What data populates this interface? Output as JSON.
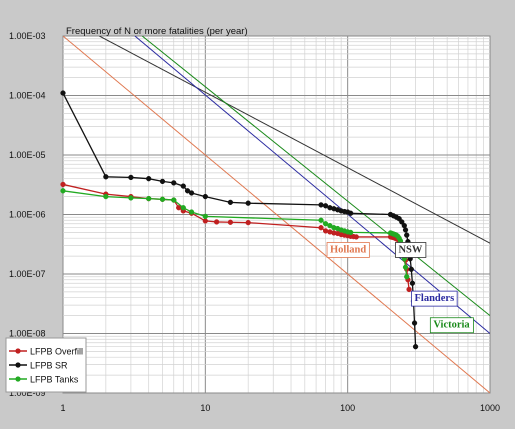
{
  "chart_data": {
    "type": "line",
    "title": "Frequency of N or more fatalities (per year)",
    "xlabel": "",
    "ylabel": "",
    "x_scale": "log",
    "y_scale": "log",
    "xlim": [
      1,
      1000
    ],
    "ylim": [
      1e-09,
      0.001
    ],
    "grid": true,
    "legend_position": "bottom-left",
    "x_ticks": [
      {
        "value": 1,
        "label": "1"
      },
      {
        "value": 10,
        "label": "10"
      },
      {
        "value": 100,
        "label": "100"
      },
      {
        "value": 1000,
        "label": "1000"
      }
    ],
    "y_ticks": [
      {
        "value": 0.001,
        "label": "1.00E-03"
      },
      {
        "value": 0.0001,
        "label": "1.00E-04"
      },
      {
        "value": 1e-05,
        "label": "1.00E-05"
      },
      {
        "value": 1e-06,
        "label": "1.00E-06"
      },
      {
        "value": 1e-07,
        "label": "1.00E-07"
      },
      {
        "value": 1e-08,
        "label": "1.00E-08"
      },
      {
        "value": 1e-09,
        "label": "1.00E-09"
      }
    ],
    "criteria": [
      {
        "name": "NSW",
        "color": "#333333",
        "points": [
          [
            1.8,
            0.001
          ],
          [
            1000,
            3.3e-07
          ]
        ],
        "label_at": [
          335,
          2.3e-07
        ]
      },
      {
        "name": "Victoria",
        "color": "#1a8a1a",
        "points": [
          [
            3.6,
            0.001
          ],
          [
            1000,
            2e-08
          ]
        ],
        "label_at": [
          720,
          1.25e-08
        ]
      },
      {
        "name": "Flanders",
        "color": "#2a2aa0",
        "points": [
          [
            3.2,
            0.001
          ],
          [
            1000,
            1e-08
          ]
        ],
        "label_at": [
          560,
          3.5e-08
        ]
      },
      {
        "name": "Holland",
        "color": "#e07850",
        "points": [
          [
            1.0,
            0.001
          ],
          [
            1000,
            1e-09
          ]
        ],
        "label_at": [
          135,
          2.3e-07
        ]
      }
    ],
    "series": [
      {
        "name": "LFPB Overfill",
        "color": "#c02020",
        "x": [
          1,
          2,
          3,
          4,
          5,
          6,
          6.5,
          7,
          8,
          10,
          12,
          15,
          20,
          65,
          70,
          75,
          80,
          85,
          90,
          95,
          100,
          105,
          110,
          115,
          200,
          205,
          210,
          215,
          220,
          225,
          230,
          235,
          240,
          245,
          250,
          255,
          260,
          265,
          270
        ],
        "y": [
          3.2e-06,
          2.2e-06,
          2e-06,
          1.85e-06,
          1.8e-06,
          1.75e-06,
          1.3e-06,
          1.15e-06,
          1.05e-06,
          7.8e-07,
          7.5e-07,
          7.4e-07,
          7.3e-07,
          6e-07,
          5.3e-07,
          5.1e-07,
          4.9e-07,
          4.8e-07,
          4.6e-07,
          4.5e-07,
          4.4e-07,
          4.3e-07,
          4.25e-07,
          4.2e-07,
          4.2e-07,
          4.15e-07,
          4.1e-07,
          4e-07,
          3.9e-07,
          3.8e-07,
          3.6e-07,
          3.4e-07,
          3.1e-07,
          2.7e-07,
          2.2e-07,
          1.7e-07,
          1.2e-07,
          8e-08,
          5.5e-08
        ]
      },
      {
        "name": "LFPB SR",
        "color": "#111111",
        "x": [
          1,
          2,
          3,
          4,
          5,
          6,
          7,
          7.5,
          8,
          10,
          15,
          20,
          65,
          70,
          75,
          80,
          85,
          90,
          95,
          100,
          105,
          200,
          210,
          220,
          230,
          240,
          250,
          255,
          260,
          265,
          270,
          275,
          280,
          285,
          290,
          295,
          300
        ],
        "y": [
          0.00011,
          4.3e-06,
          4.2e-06,
          4e-06,
          3.6e-06,
          3.4e-06,
          3e-06,
          2.5e-06,
          2.3e-06,
          2e-06,
          1.6e-06,
          1.55e-06,
          1.45e-06,
          1.4e-06,
          1.3e-06,
          1.25e-06,
          1.2e-06,
          1.15e-06,
          1.12e-06,
          1.1e-06,
          1.05e-06,
          1e-06,
          9.5e-07,
          9e-07,
          8.5e-07,
          7.5e-07,
          6.5e-07,
          5.5e-07,
          4.5e-07,
          3.5e-07,
          2.6e-07,
          1.8e-07,
          1.2e-07,
          7e-08,
          3.5e-08,
          1.5e-08,
          6e-09
        ]
      },
      {
        "name": "LFPB Tanks",
        "color": "#22aa22",
        "x": [
          1,
          2,
          3,
          4,
          5,
          6,
          7,
          8,
          10,
          65,
          70,
          75,
          80,
          85,
          90,
          95,
          100,
          105,
          200,
          205,
          210,
          215,
          220,
          225,
          230,
          235,
          240,
          245,
          250,
          255,
          260
        ],
        "y": [
          2.5e-06,
          2e-06,
          1.9e-06,
          1.85e-06,
          1.8e-06,
          1.75e-06,
          1.3e-06,
          1.1e-06,
          9.3e-07,
          8e-07,
          7e-07,
          6.5e-07,
          6e-07,
          5.8e-07,
          5.5e-07,
          5.3e-07,
          5.1e-07,
          5e-07,
          4.9e-07,
          4.8e-07,
          4.7e-07,
          4.6e-07,
          4.5e-07,
          4.3e-07,
          4e-07,
          3.6e-07,
          3e-07,
          2.4e-07,
          1.8e-07,
          1.3e-07,
          9e-08
        ]
      }
    ]
  }
}
